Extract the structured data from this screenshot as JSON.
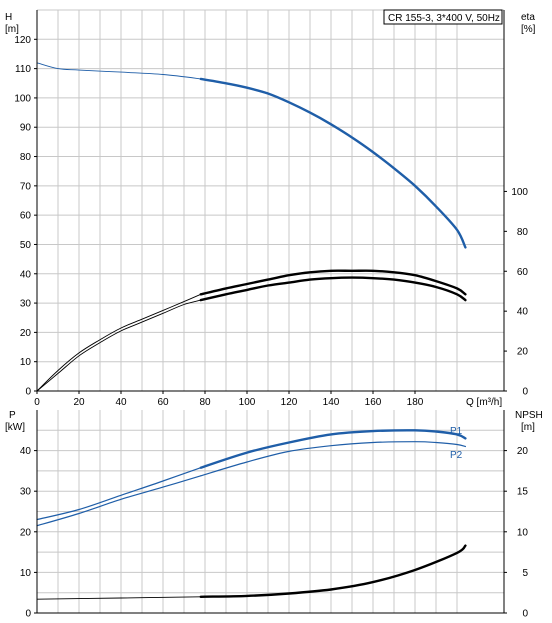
{
  "colors": {
    "blue": "#1f5ea8",
    "black": "#000000",
    "grid": "#c8c8c8"
  },
  "header": {
    "title": "CR 155-3, 3*400 V, 50Hz"
  },
  "chart_data": [
    {
      "type": "line",
      "name": "head-efficiency",
      "y_label_left": "H",
      "y_unit_left": "[m]",
      "y_label_right": "eta",
      "y_unit_right": "[%]",
      "x_label": "Q [m³/h]",
      "xlim": [
        0,
        210
      ],
      "ylim_left": [
        0,
        130
      ],
      "ylim_right": [
        0,
        190.9
      ],
      "x_ticks": [
        0,
        20,
        40,
        60,
        80,
        100,
        120,
        140,
        160,
        180
      ],
      "y_ticks_left": [
        0,
        10,
        20,
        30,
        40,
        50,
        60,
        70,
        80,
        90,
        100,
        110,
        120
      ],
      "y_ticks_right": [
        0,
        20,
        40,
        60,
        80,
        100
      ],
      "grid": true,
      "series": [
        {
          "axis": "left",
          "color": "#1f5ea8",
          "style": "thin",
          "x": [
            0,
            10,
            20,
            40,
            60,
            78
          ],
          "y": [
            112,
            110,
            109.5,
            108.8,
            108,
            106.5
          ]
        },
        {
          "axis": "left",
          "color": "#1f5ea8",
          "style": "thick",
          "x": [
            78,
            90,
            100,
            110,
            120,
            130,
            140,
            150,
            160,
            170,
            180,
            190,
            200,
            204
          ],
          "y": [
            106.5,
            105,
            103.5,
            101.5,
            98.5,
            95,
            91,
            86.5,
            81.5,
            76,
            70,
            63,
            55,
            49
          ]
        },
        {
          "axis": "left",
          "color": "#000000",
          "style": "thin",
          "x": [
            0,
            10,
            20,
            30,
            40,
            50,
            60,
            70,
            78
          ],
          "y": [
            0,
            7,
            13,
            17.5,
            21.5,
            24.5,
            27.5,
            30.5,
            33
          ]
        },
        {
          "axis": "left",
          "color": "#000000",
          "style": "thin",
          "x": [
            0,
            10,
            20,
            30,
            40,
            50,
            60,
            70,
            78
          ],
          "y": [
            0,
            6,
            12,
            16.5,
            20.5,
            23.5,
            26.5,
            29.5,
            31
          ]
        },
        {
          "axis": "left",
          "color": "#000000",
          "style": "thick",
          "x": [
            78,
            90,
            100,
            110,
            120,
            130,
            140,
            150,
            160,
            170,
            180,
            190,
            200,
            204
          ],
          "y": [
            33,
            35,
            36.5,
            38,
            39.5,
            40.5,
            41,
            41,
            41,
            40.5,
            39.5,
            37.5,
            35,
            33
          ]
        },
        {
          "axis": "left",
          "color": "#000000",
          "style": "thick",
          "x": [
            78,
            90,
            100,
            110,
            120,
            130,
            140,
            150,
            160,
            170,
            180,
            190,
            200,
            204
          ],
          "y": [
            31,
            33,
            34.5,
            36,
            37,
            38,
            38.5,
            38.7,
            38.5,
            38,
            37,
            35.5,
            33,
            31
          ]
        }
      ]
    },
    {
      "type": "line",
      "name": "power-npsh",
      "y_label_left": "P",
      "y_unit_left": "[kW]",
      "y_label_right": "NPSH",
      "y_unit_right": "[m]",
      "xlim": [
        0,
        210
      ],
      "ylim_left": [
        0,
        50
      ],
      "ylim_right": [
        0,
        25
      ],
      "y_ticks_left": [
        0,
        10,
        20,
        30,
        40
      ],
      "y_ticks_right": [
        0,
        5,
        10,
        15,
        20
      ],
      "grid": true,
      "series": [
        {
          "name": "P1",
          "axis": "left",
          "color": "#1f5ea8",
          "style": "thin",
          "x": [
            0,
            20,
            40,
            60,
            78
          ],
          "y": [
            23,
            25.5,
            29,
            32.5,
            35.8
          ]
        },
        {
          "name": "P1",
          "axis": "left",
          "color": "#1f5ea8",
          "style": "thick",
          "x": [
            78,
            100,
            120,
            140,
            160,
            180,
            190,
            200,
            204
          ],
          "y": [
            35.8,
            39.5,
            42,
            44,
            44.8,
            45,
            44.7,
            44,
            43
          ]
        },
        {
          "name": "P2",
          "axis": "left",
          "color": "#1f5ea8",
          "style": "thin",
          "x": [
            0,
            20,
            40,
            60,
            78
          ],
          "y": [
            21.5,
            24.5,
            28,
            31,
            33.8
          ]
        },
        {
          "name": "P2",
          "axis": "left",
          "color": "#1f5ea8",
          "style": "thin",
          "x": [
            78,
            100,
            120,
            140,
            160,
            180,
            190,
            200,
            204
          ],
          "y": [
            33.8,
            37.2,
            39.8,
            41.2,
            42,
            42.2,
            42,
            41.5,
            41
          ]
        },
        {
          "axis": "right",
          "color": "#000000",
          "style": "thin",
          "x": [
            0,
            40,
            78
          ],
          "y": [
            1.7,
            1.85,
            2.0
          ]
        },
        {
          "axis": "right",
          "color": "#000000",
          "style": "thick",
          "x": [
            78,
            100,
            120,
            140,
            160,
            180,
            200,
            204
          ],
          "y": [
            2.0,
            2.1,
            2.4,
            2.9,
            3.8,
            5.3,
            7.4,
            8.3
          ]
        }
      ]
    }
  ]
}
